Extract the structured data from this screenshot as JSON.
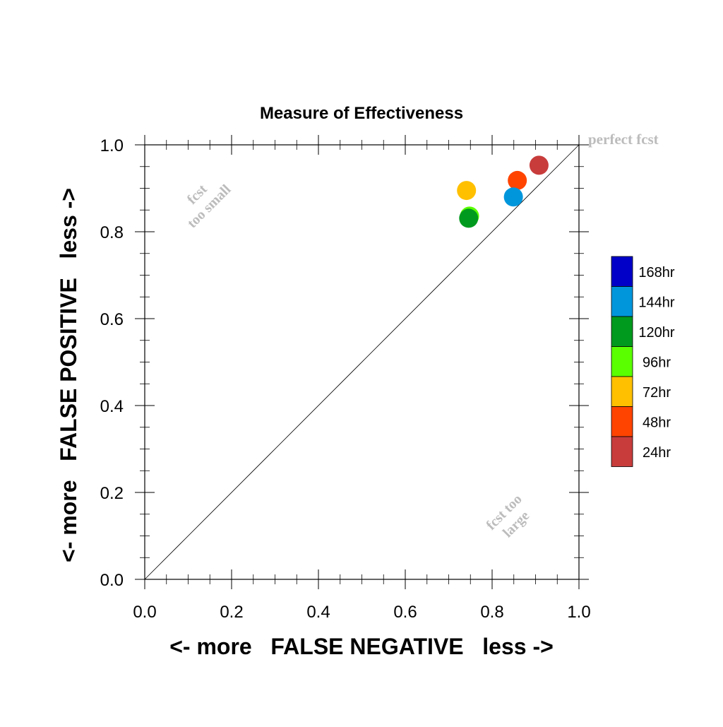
{
  "chart_data": {
    "type": "scatter",
    "title": "Measure of Effectiveness",
    "xlabel": "<- more   FALSE NEGATIVE   less ->",
    "ylabel": "<- more   FALSE POSITIVE   less ->",
    "xlim": [
      0.0,
      1.0
    ],
    "ylim": [
      0.0,
      1.0
    ],
    "x_ticks": [
      "0.0",
      "0.2",
      "0.4",
      "0.6",
      "0.8",
      "1.0"
    ],
    "y_ticks": [
      "0.0",
      "0.2",
      "0.4",
      "0.6",
      "0.8",
      "1.0"
    ],
    "diagonal_line": true,
    "grid": false,
    "annotations": [
      {
        "id": "perfect",
        "lines": [
          "perfect fcst"
        ]
      },
      {
        "id": "too-small",
        "lines": [
          "fcst",
          "too small"
        ]
      },
      {
        "id": "too-large",
        "lines": [
          "fcst too",
          "large"
        ]
      }
    ],
    "series": [
      {
        "name": "24hr",
        "color": "#c83c3c",
        "x": 0.908,
        "y": 0.953
      },
      {
        "name": "48hr",
        "color": "#ff4400",
        "x": 0.858,
        "y": 0.918
      },
      {
        "name": "72hr",
        "color": "#ffc000",
        "x": 0.741,
        "y": 0.895
      },
      {
        "name": "96hr",
        "color": "#5aff00",
        "x": 0.748,
        "y": 0.836
      },
      {
        "name": "120hr",
        "color": "#009a1e",
        "x": 0.746,
        "y": 0.831
      },
      {
        "name": "144hr",
        "color": "#0096dc",
        "x": 0.849,
        "y": 0.88
      }
    ],
    "legend": {
      "placement": "right",
      "entries": [
        {
          "label": "168hr",
          "color": "#0000c8"
        },
        {
          "label": "144hr",
          "color": "#0096dc"
        },
        {
          "label": "120hr",
          "color": "#009a1e"
        },
        {
          "label": "96hr",
          "color": "#5aff00"
        },
        {
          "label": "72hr",
          "color": "#ffc000"
        },
        {
          "label": "48hr",
          "color": "#ff4400"
        },
        {
          "label": "24hr",
          "color": "#c83c3c"
        }
      ]
    }
  }
}
